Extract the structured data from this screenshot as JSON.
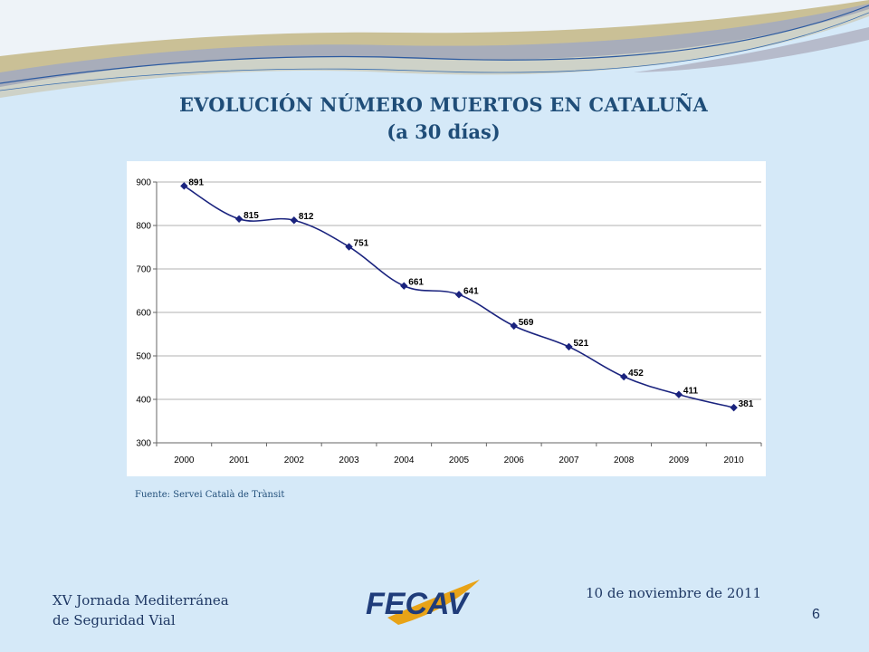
{
  "slide": {
    "title_line1": "EVOLUCIÓN NÚMERO MUERTOS EN CATALUÑA",
    "title_line2": "(a 30 días)",
    "source": "Fuente: Servei Català de Trànsit",
    "footer_line1": "XV Jornada Mediterránea",
    "footer_line2": "de Seguridad Vial",
    "date": "10 de noviembre de 2011",
    "page_number": "6",
    "logo_text": "FECAV"
  },
  "colors": {
    "title": "#1f4d78",
    "series_line": "#1a237e",
    "marker": "#1a237e",
    "background": "#d5e9f8"
  },
  "chart_data": {
    "type": "line",
    "title": "",
    "xlabel": "",
    "ylabel": "",
    "ylim": [
      300,
      900
    ],
    "yticks": [
      300,
      400,
      500,
      600,
      700,
      800,
      900
    ],
    "categories": [
      "2000",
      "2001",
      "2002",
      "2003",
      "2004",
      "2005",
      "2006",
      "2007",
      "2008",
      "2009",
      "2010"
    ],
    "values": [
      891,
      815,
      812,
      751,
      661,
      641,
      569,
      521,
      452,
      411,
      381
    ],
    "data_labels": [
      "891",
      "815",
      "812",
      "751",
      "661",
      "641",
      "569",
      "521",
      "452",
      "411",
      "381"
    ],
    "grid": true,
    "legend": "none",
    "marker": "diamond"
  }
}
